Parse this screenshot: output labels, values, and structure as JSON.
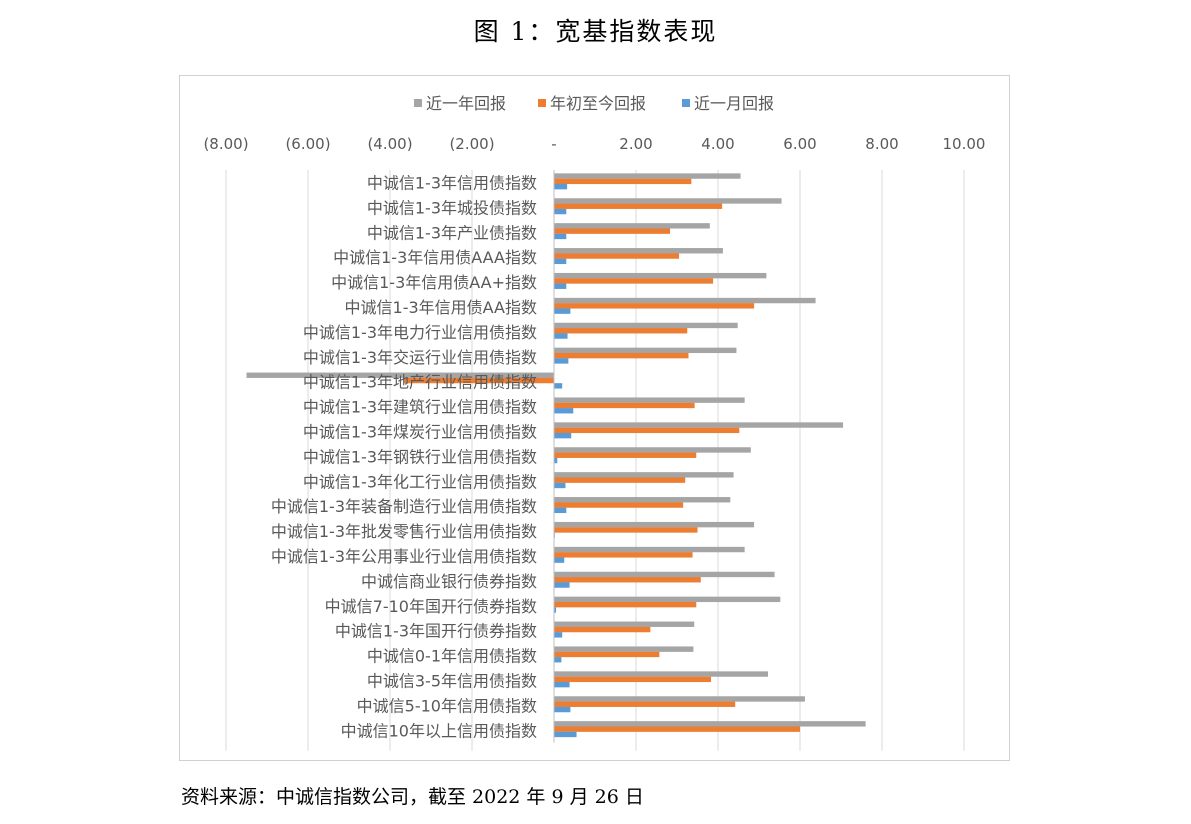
{
  "figure_title": "图 1：宽基指数表现",
  "source_note": "资料来源：中诚信指数公司，截至 2022 年 9 月 26 日",
  "colors": {
    "s0": "#a5a5a5",
    "s1": "#ed7d31",
    "s2": "#5b9bd5",
    "grid": "#d9d9d9",
    "text": "#595959"
  },
  "chart_data": {
    "type": "bar",
    "orientation": "horizontal",
    "title": "",
    "xlim": [
      -8,
      10
    ],
    "x_ticks": [
      -8,
      -6,
      -4,
      -2,
      0,
      2,
      4,
      6,
      8,
      10
    ],
    "x_tick_labels": [
      "(8.00)",
      "(6.00)",
      "(4.00)",
      "(2.00)",
      "-",
      "2.00",
      "4.00",
      "6.00",
      "8.00",
      "10.00"
    ],
    "legend_position": "top",
    "grid": true,
    "categories": [
      "中诚信1-3年信用债指数",
      "中诚信1-3年城投债指数",
      "中诚信1-3年产业债指数",
      "中诚信1-3年信用债AAA指数",
      "中诚信1-3年信用债AA+指数",
      "中诚信1-3年信用债AA指数",
      "中诚信1-3年电力行业信用债指数",
      "中诚信1-3年交运行业信用债指数",
      "中诚信1-3年地产行业信用债指数",
      "中诚信1-3年建筑行业信用债指数",
      "中诚信1-3年煤炭行业信用债指数",
      "中诚信1-3年钢铁行业信用债指数",
      "中诚信1-3年化工行业信用债指数",
      "中诚信1-3年装备制造行业信用债指数",
      "中诚信1-3年批发零售行业信用债指数",
      "中诚信1-3年公用事业行业信用债指数",
      "中诚信商业银行债券指数",
      "中诚信7-10年国开行债券指数",
      "中诚信1-3年国开行债券指数",
      "中诚信0-1年信用债指数",
      "中诚信3-5年信用债指数",
      "中诚信5-10年信用债指数",
      "中诚信10年以上信用债指数"
    ],
    "series": [
      {
        "name": "近一年回报",
        "values": [
          4.55,
          5.55,
          3.8,
          4.12,
          5.18,
          6.38,
          4.48,
          4.45,
          -7.5,
          4.65,
          7.05,
          4.8,
          4.38,
          4.3,
          4.88,
          4.65,
          5.38,
          5.52,
          3.42,
          3.4,
          5.22,
          6.12,
          7.6
        ]
      },
      {
        "name": "年初至今回报",
        "values": [
          3.35,
          4.1,
          2.83,
          3.05,
          3.88,
          4.88,
          3.25,
          3.28,
          -3.65,
          3.43,
          4.52,
          3.47,
          3.2,
          3.15,
          3.5,
          3.38,
          3.58,
          3.47,
          2.35,
          2.57,
          3.83,
          4.42,
          6.0
        ]
      },
      {
        "name": "近一月回报",
        "values": [
          0.32,
          0.3,
          0.3,
          0.3,
          0.3,
          0.4,
          0.33,
          0.35,
          0.2,
          0.47,
          0.42,
          0.08,
          0.28,
          0.3,
          0.02,
          0.25,
          0.38,
          0.05,
          0.2,
          0.18,
          0.38,
          0.4,
          0.55
        ]
      }
    ]
  }
}
